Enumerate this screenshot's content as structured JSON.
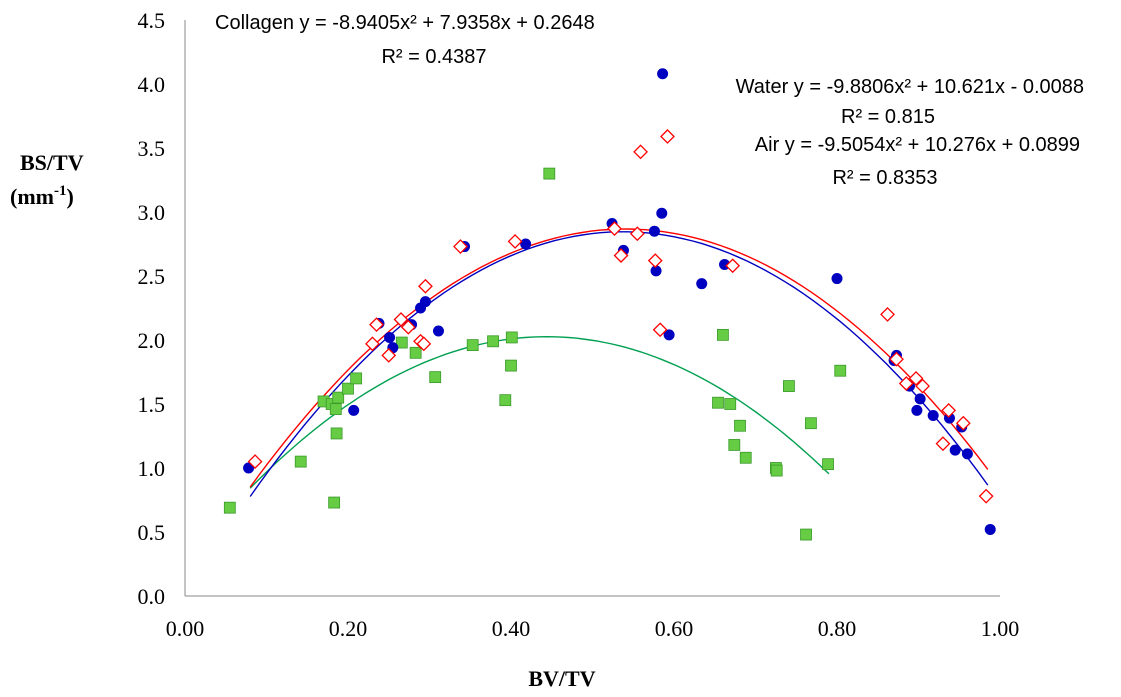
{
  "chart_data": {
    "type": "scatter",
    "title": "",
    "xlabel": "BV/TV",
    "ylabel_main": "BS/TV",
    "ylabel_unit_base": "(mm",
    "ylabel_unit_sup": "-1",
    "ylabel_unit_end": ")",
    "xlim": [
      0,
      1
    ],
    "ylim": [
      0,
      4.5
    ],
    "x_ticks": [
      "0.00",
      "0.20",
      "0.40",
      "0.60",
      "0.80",
      "1.00"
    ],
    "y_ticks": [
      "0.0",
      "0.5",
      "1.0",
      "1.5",
      "2.0",
      "2.5",
      "3.0",
      "3.5",
      "4.0",
      "4.5"
    ],
    "grid": false,
    "legend": "none",
    "series": [
      {
        "name": "Water",
        "marker": "circle",
        "color": "#0000c0",
        "fit": {
          "a": -9.8806,
          "b": 10.621,
          "c": -0.0088,
          "x_range": [
            0.08,
            0.985
          ],
          "color": "#0000c0"
        },
        "equation_label": "Water y = -9.8806x² + 10.621x - 0.0088",
        "r2_label": "R² = 0.815",
        "points": [
          [
            0.078,
            1.0
          ],
          [
            0.207,
            1.45
          ],
          [
            0.238,
            2.13
          ],
          [
            0.251,
            2.02
          ],
          [
            0.255,
            1.94
          ],
          [
            0.278,
            2.12
          ],
          [
            0.289,
            2.25
          ],
          [
            0.295,
            2.3
          ],
          [
            0.311,
            2.07
          ],
          [
            0.343,
            2.73
          ],
          [
            0.418,
            2.75
          ],
          [
            0.524,
            2.91
          ],
          [
            0.538,
            2.7
          ],
          [
            0.576,
            2.85
          ],
          [
            0.578,
            2.54
          ],
          [
            0.585,
            2.99
          ],
          [
            0.586,
            4.08
          ],
          [
            0.594,
            2.04
          ],
          [
            0.634,
            2.44
          ],
          [
            0.662,
            2.59
          ],
          [
            0.8,
            2.48
          ],
          [
            0.87,
            1.84
          ],
          [
            0.873,
            1.88
          ],
          [
            0.889,
            1.64
          ],
          [
            0.898,
            1.45
          ],
          [
            0.902,
            1.54
          ],
          [
            0.918,
            1.41
          ],
          [
            0.938,
            1.39
          ],
          [
            0.945,
            1.14
          ],
          [
            0.953,
            1.32
          ],
          [
            0.96,
            1.11
          ],
          [
            0.988,
            0.52
          ]
        ]
      },
      {
        "name": "Air",
        "marker": "diamond",
        "color": "#ff0000",
        "fit": {
          "a": -9.5054,
          "b": 10.276,
          "c": 0.0899,
          "x_range": [
            0.08,
            0.985
          ],
          "color": "#ff0000"
        },
        "equation_label": "Air y = -9.5054x² + 10.276x + 0.0899",
        "r2_label": "R² = 0.8353",
        "points": [
          [
            0.086,
            1.05
          ],
          [
            0.23,
            1.97
          ],
          [
            0.235,
            2.12
          ],
          [
            0.25,
            1.88
          ],
          [
            0.265,
            2.16
          ],
          [
            0.274,
            2.1
          ],
          [
            0.289,
            1.99
          ],
          [
            0.293,
            1.97
          ],
          [
            0.295,
            2.42
          ],
          [
            0.338,
            2.73
          ],
          [
            0.405,
            2.77
          ],
          [
            0.527,
            2.87
          ],
          [
            0.535,
            2.66
          ],
          [
            0.555,
            2.83
          ],
          [
            0.559,
            3.47
          ],
          [
            0.577,
            2.62
          ],
          [
            0.583,
            2.08
          ],
          [
            0.592,
            3.59
          ],
          [
            0.672,
            2.58
          ],
          [
            0.862,
            2.2
          ],
          [
            0.873,
            1.85
          ],
          [
            0.885,
            1.66
          ],
          [
            0.897,
            1.7
          ],
          [
            0.905,
            1.64
          ],
          [
            0.93,
            1.19
          ],
          [
            0.937,
            1.45
          ],
          [
            0.955,
            1.35
          ],
          [
            0.983,
            0.78
          ]
        ]
      },
      {
        "name": "Collagen",
        "marker": "square",
        "color": "#66cc44",
        "fit": {
          "a": -8.9405,
          "b": 7.9358,
          "c": 0.2648,
          "x_range": [
            0.08,
            0.79
          ],
          "color": "#00a050"
        },
        "equation_label": "Collagen y = -8.9405x² + 7.9358x + 0.2648",
        "r2_label": "R² = 0.4387",
        "points": [
          [
            0.055,
            0.69
          ],
          [
            0.142,
            1.05
          ],
          [
            0.17,
            1.52
          ],
          [
            0.18,
            1.5
          ],
          [
            0.183,
            0.73
          ],
          [
            0.185,
            1.46
          ],
          [
            0.186,
            1.27
          ],
          [
            0.188,
            1.55
          ],
          [
            0.2,
            1.62
          ],
          [
            0.21,
            1.7
          ],
          [
            0.266,
            1.98
          ],
          [
            0.283,
            1.9
          ],
          [
            0.307,
            1.71
          ],
          [
            0.353,
            1.96
          ],
          [
            0.378,
            1.99
          ],
          [
            0.393,
            1.53
          ],
          [
            0.4,
            1.8
          ],
          [
            0.401,
            2.02
          ],
          [
            0.447,
            3.3
          ],
          [
            0.654,
            1.51
          ],
          [
            0.66,
            2.04
          ],
          [
            0.669,
            1.5
          ],
          [
            0.674,
            1.18
          ],
          [
            0.681,
            1.33
          ],
          [
            0.688,
            1.08
          ],
          [
            0.725,
            1.0
          ],
          [
            0.726,
            0.98
          ],
          [
            0.741,
            1.64
          ],
          [
            0.762,
            0.48
          ],
          [
            0.768,
            1.35
          ],
          [
            0.789,
            1.03
          ],
          [
            0.804,
            1.76
          ]
        ]
      }
    ]
  }
}
